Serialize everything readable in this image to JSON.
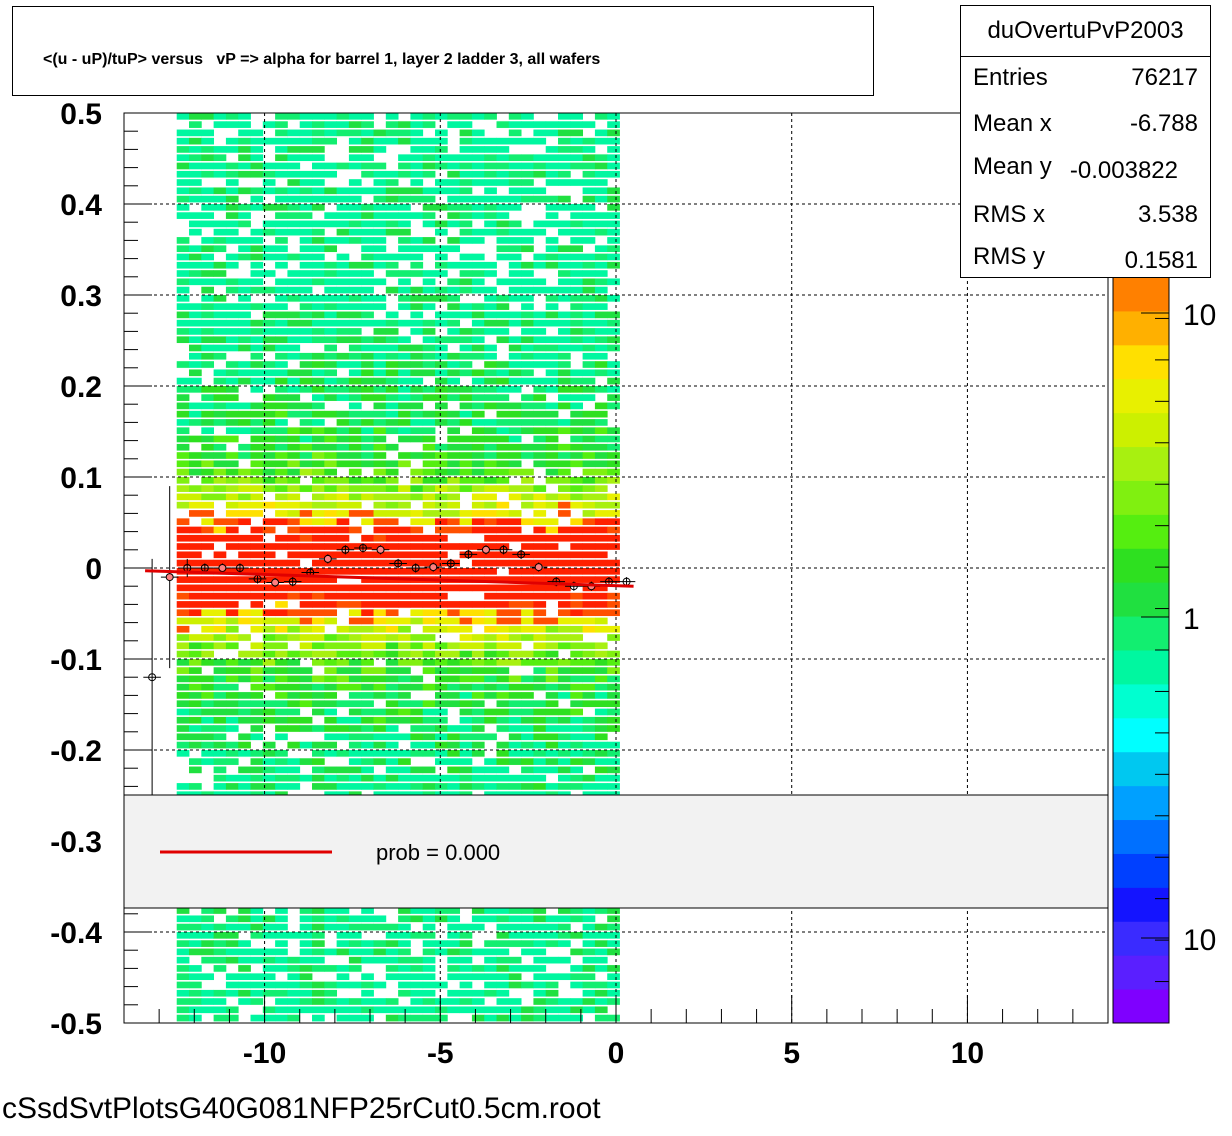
{
  "title": "<(u - uP)/tuP> versus   vP => alpha for barrel 1, layer 2 ladder 3, all wafers",
  "stats": {
    "name": "duOvertuPvP2003",
    "rows": [
      {
        "label": "Entries",
        "value": "76217"
      },
      {
        "label": "Mean x",
        "value": "-6.788"
      },
      {
        "label": "Mean y",
        "value": "-0.003822"
      },
      {
        "label": "RMS x",
        "value": "3.538"
      },
      {
        "label": "RMS y",
        "value": "0.1581"
      }
    ]
  },
  "legend": {
    "entry": "prob = 0.000",
    "line_color": "#e00000"
  },
  "palette_labels": [
    "10",
    "1",
    "10"
  ],
  "footer": "cSsdSvtPlotsG40G081NFP25rCut0.5cm.root",
  "chart_data": {
    "type": "heatmap",
    "xlim": [
      -14,
      14
    ],
    "ylim": [
      -0.5,
      0.5
    ],
    "x_ticks": [
      -10,
      -5,
      0,
      5,
      10
    ],
    "x_tick_labels": [
      "-10",
      "-5",
      "0",
      "5",
      "10"
    ],
    "y_ticks": [
      0.5,
      0.4,
      0.3,
      0.2,
      0.1,
      0,
      -0.1,
      -0.2,
      -0.3,
      -0.4,
      -0.5
    ],
    "y_tick_labels": [
      "0.5",
      "0.4",
      "0.3",
      "0.2",
      "0.1",
      "0",
      "-0.1",
      "-0.2",
      "-0.3",
      "-0.4",
      "-0.5"
    ],
    "grid": true,
    "filled_x_range": [
      -12.5,
      0.1
    ],
    "profile": {
      "x": [
        -13.2,
        -12.7,
        -12.2,
        -11.7,
        -11.2,
        -10.7,
        -10.2,
        -9.7,
        -9.2,
        -8.7,
        -8.2,
        -7.7,
        -7.2,
        -6.7,
        -6.2,
        -5.7,
        -5.2,
        -4.7,
        -4.2,
        -3.7,
        -3.2,
        -2.7,
        -2.2,
        -1.7,
        -1.2,
        -0.7,
        -0.2,
        0.3
      ],
      "y": [
        -0.12,
        -0.01,
        0.0,
        0.0,
        0.0,
        0.0,
        -0.012,
        -0.016,
        -0.015,
        -0.005,
        0.01,
        0.02,
        0.022,
        0.02,
        0.005,
        0.0,
        0.001,
        0.005,
        0.015,
        0.02,
        0.02,
        0.015,
        0.001,
        -0.015,
        -0.02,
        -0.02,
        -0.015,
        -0.015
      ],
      "yerr": [
        0.13,
        0.1,
        0.01,
        0.005,
        0.005,
        0.005,
        0.005,
        0.005,
        0.005,
        0.005,
        0.005,
        0.005,
        0.005,
        0.005,
        0.005,
        0.005,
        0.005,
        0.005,
        0.005,
        0.005,
        0.005,
        0.005,
        0.005,
        0.005,
        0.005,
        0.005,
        0.005,
        0.005
      ]
    },
    "fit_line": {
      "x": [
        -13.4,
        0.5
      ],
      "y": [
        -0.003,
        -0.02
      ]
    }
  }
}
